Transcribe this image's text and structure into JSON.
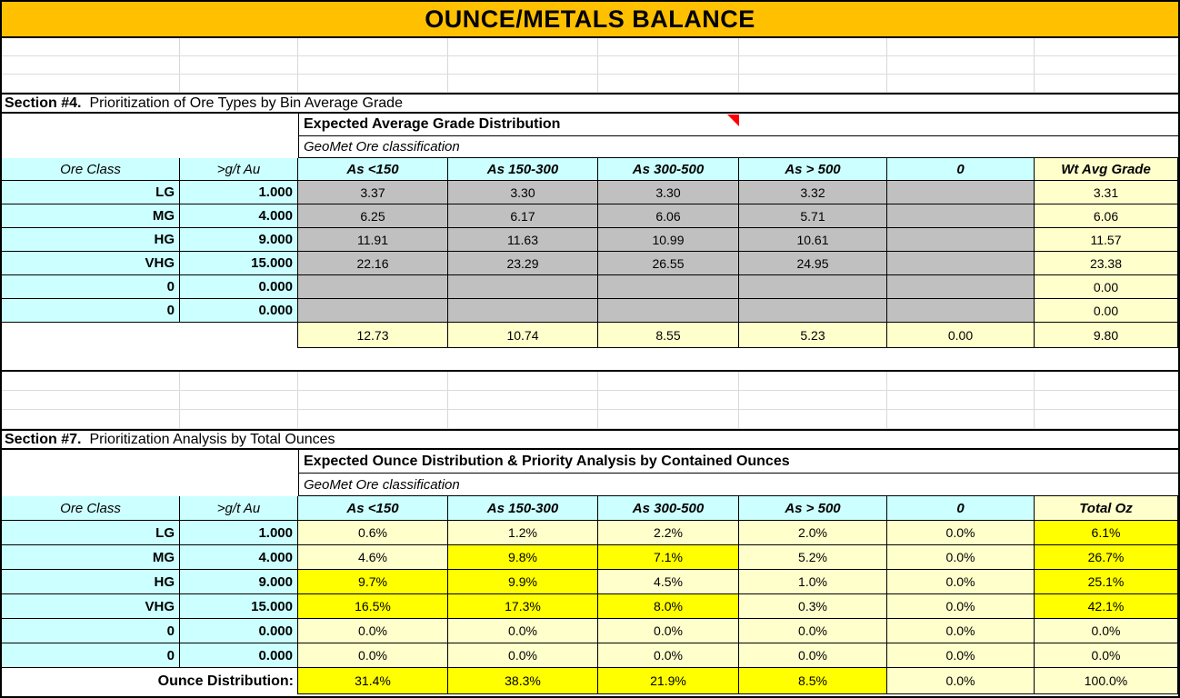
{
  "colors": {
    "banner": "#FFC000",
    "header_fill": "#CCFFFF",
    "grade_fill": "#C0C0C0",
    "light_yellow": "#FFFFCC",
    "highlight_yellow": "#FFFF00"
  },
  "banner": {
    "title": "OUNCE/METALS BALANCE"
  },
  "section4": {
    "label": "Section #4.",
    "description": "Prioritization of Ore Types by Bin Average Grade",
    "table_title": "Expected Average Grade Distribution",
    "classification": "GeoMet Ore classification",
    "headers": [
      "Ore Class",
      ">g/t Au",
      "As <150",
      "As 150-300",
      "As 300-500",
      "As > 500",
      "0",
      "Wt Avg Grade"
    ],
    "rows": [
      {
        "ore_class": "LG",
        "cutoff": "1.000",
        "values": [
          "3.37",
          "3.30",
          "3.30",
          "3.32",
          ""
        ],
        "wt_avg": "3.31"
      },
      {
        "ore_class": "MG",
        "cutoff": "4.000",
        "values": [
          "6.25",
          "6.17",
          "6.06",
          "5.71",
          ""
        ],
        "wt_avg": "6.06"
      },
      {
        "ore_class": "HG",
        "cutoff": "9.000",
        "values": [
          "11.91",
          "11.63",
          "10.99",
          "10.61",
          ""
        ],
        "wt_avg": "11.57"
      },
      {
        "ore_class": "VHG",
        "cutoff": "15.000",
        "values": [
          "22.16",
          "23.29",
          "26.55",
          "24.95",
          ""
        ],
        "wt_avg": "23.38"
      },
      {
        "ore_class": "0",
        "cutoff": "0.000",
        "values": [
          "",
          "",
          "",
          "",
          ""
        ],
        "wt_avg": "0.00"
      },
      {
        "ore_class": "0",
        "cutoff": "0.000",
        "values": [
          "",
          "",
          "",
          "",
          ""
        ],
        "wt_avg": "0.00"
      }
    ],
    "totals": {
      "values": [
        "12.73",
        "10.74",
        "8.55",
        "5.23",
        "0.00"
      ],
      "wt_avg": "9.80"
    }
  },
  "section7": {
    "label": "Section #7.",
    "description": "Prioritization Analysis by Total Ounces",
    "table_title": "Expected Ounce Distribution & Priority Analysis by Contained Ounces",
    "classification": "GeoMet Ore classification",
    "headers": [
      "Ore Class",
      ">g/t Au",
      "As <150",
      "As 150-300",
      "As 300-500",
      "As > 500",
      "0",
      "Total Oz"
    ],
    "rows": [
      {
        "ore_class": "LG",
        "cutoff": "1.000",
        "values": [
          "0.6%",
          "1.2%",
          "2.2%",
          "2.0%",
          "0.0%"
        ],
        "highlights": [
          0,
          0,
          0,
          0,
          0
        ],
        "total": "6.1%",
        "total_highlight": 1
      },
      {
        "ore_class": "MG",
        "cutoff": "4.000",
        "values": [
          "4.6%",
          "9.8%",
          "7.1%",
          "5.2%",
          "0.0%"
        ],
        "highlights": [
          0,
          1,
          1,
          0,
          0
        ],
        "total": "26.7%",
        "total_highlight": 1
      },
      {
        "ore_class": "HG",
        "cutoff": "9.000",
        "values": [
          "9.7%",
          "9.9%",
          "4.5%",
          "1.0%",
          "0.0%"
        ],
        "highlights": [
          1,
          1,
          0,
          0,
          0
        ],
        "total": "25.1%",
        "total_highlight": 1
      },
      {
        "ore_class": "VHG",
        "cutoff": "15.000",
        "values": [
          "16.5%",
          "17.3%",
          "8.0%",
          "0.3%",
          "0.0%"
        ],
        "highlights": [
          1,
          1,
          1,
          0,
          0
        ],
        "total": "42.1%",
        "total_highlight": 1
      },
      {
        "ore_class": "0",
        "cutoff": "0.000",
        "values": [
          "0.0%",
          "0.0%",
          "0.0%",
          "0.0%",
          "0.0%"
        ],
        "highlights": [
          0,
          0,
          0,
          0,
          0
        ],
        "total": "0.0%",
        "total_highlight": 0
      },
      {
        "ore_class": "0",
        "cutoff": "0.000",
        "values": [
          "0.0%",
          "0.0%",
          "0.0%",
          "0.0%",
          "0.0%"
        ],
        "highlights": [
          0,
          0,
          0,
          0,
          0
        ],
        "total": "0.0%",
        "total_highlight": 0
      }
    ],
    "footer": {
      "label": "Ounce Distribution:",
      "values": [
        "31.4%",
        "38.3%",
        "21.9%",
        "8.5%",
        "0.0%"
      ],
      "highlights": [
        1,
        1,
        1,
        1,
        0
      ],
      "total": "100.0%",
      "total_highlight": 0
    }
  }
}
